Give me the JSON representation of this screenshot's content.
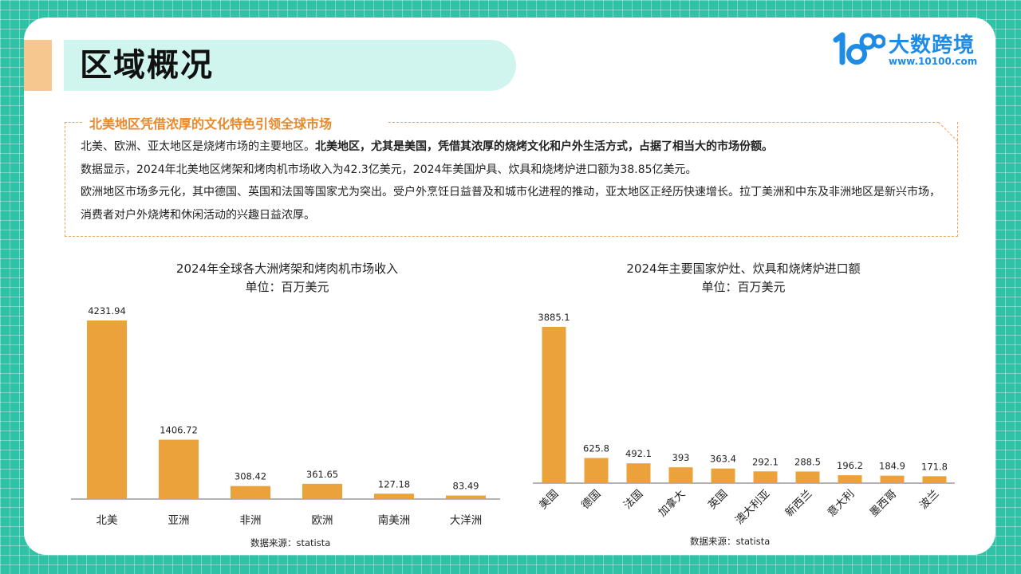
{
  "page_title": "区域概况",
  "logo": {
    "name": "大数跨境",
    "url": "www.10100.com"
  },
  "info": {
    "heading": "北美地区凭借浓厚的文化特色引领全球市场",
    "para1_plain": "北美、欧洲、亚太地区是烧烤市场的主要地区。",
    "para1_bold": "北美地区，尤其是美国，凭借其浓厚的烧烤文化和户外生活方式，占据了相当大的市场份额。",
    "para2": "数据显示，2024年北美地区烤架和烤肉机市场收入为42.3亿美元，2024年美国炉具、炊具和烧烤炉进口额为38.85亿美元。",
    "para3": "欧洲地区市场多元化，其中德国、英国和法国等国家尤为突出。受户外烹饪日益普及和城市化进程的推动，亚太地区正经历快速增长。拉丁美洲和中东及非洲地区是新兴市场，消费者对户外烧烤和休闲活动的兴趣日益浓厚。"
  },
  "colors": {
    "bar": "#eba23a",
    "accent": "#e8892c",
    "brand": "#1e8be6",
    "background": "#2fc2a6"
  },
  "chart_data": [
    {
      "type": "bar",
      "title": "2024年全球各大洲烤架和烤肉机市场收入",
      "subtitle": "单位：百万美元",
      "categories": [
        "北美",
        "亚洲",
        "非洲",
        "欧洲",
        "南美洲",
        "大洋洲"
      ],
      "values": [
        4231.94,
        1406.72,
        308.42,
        361.65,
        127.18,
        83.49
      ],
      "value_labels": [
        "4231.94",
        "1406.72",
        "308.42",
        "361.65",
        "127.18",
        "83.49"
      ],
      "ylim": [
        0,
        4231.94
      ],
      "source": "数据来源：statista",
      "grid": false
    },
    {
      "type": "bar",
      "title": "2024年主要国家炉灶、炊具和烧烤炉进口额",
      "subtitle": "单位：百万美元",
      "categories": [
        "美国",
        "德国",
        "法国",
        "加拿大",
        "英国",
        "澳大利亚",
        "新西兰",
        "意大利",
        "墨西哥",
        "波兰"
      ],
      "values": [
        3885.1,
        625.8,
        492.1,
        393,
        363.4,
        292.1,
        288.5,
        196.2,
        184.9,
        171.8
      ],
      "value_labels": [
        "3885.1",
        "625.8",
        "492.1",
        "393",
        "363.4",
        "292.1",
        "288.5",
        "196.2",
        "184.9",
        "171.8"
      ],
      "ylim": [
        0,
        3885.1
      ],
      "source": "数据来源：statista",
      "grid": false,
      "label_rotation": -45
    }
  ]
}
